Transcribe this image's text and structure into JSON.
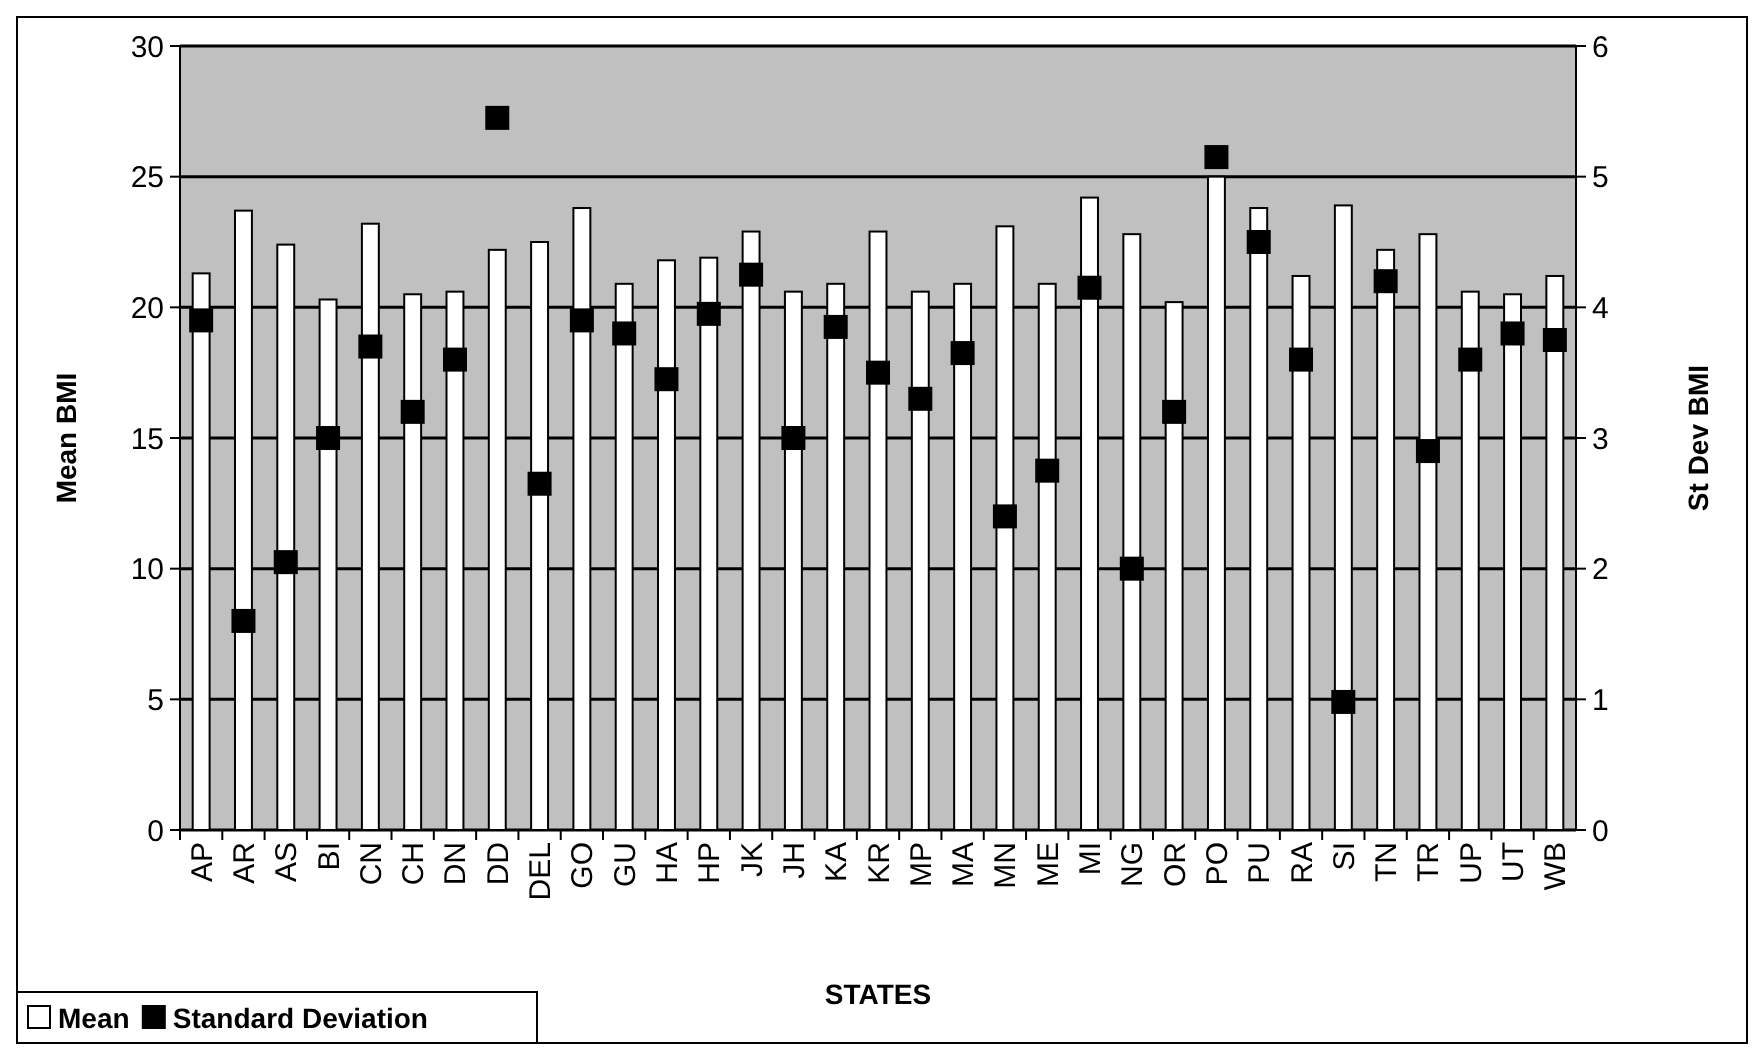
{
  "chart_data": {
    "type": "bar",
    "xlabel": "STATES",
    "ylabel": "Mean BMI",
    "y2label": "St Dev BMI",
    "categories": [
      "AP",
      "AR",
      "AS",
      "BI",
      "CN",
      "CH",
      "DN",
      "DD",
      "DEL",
      "GO",
      "GU",
      "HA",
      "HP",
      "JK",
      "JH",
      "KA",
      "KR",
      "MP",
      "MA",
      "MN",
      "ME",
      "MI",
      "NG",
      "OR",
      "PO",
      "PU",
      "RA",
      "SI",
      "TN",
      "TR",
      "UP",
      "UT",
      "WB"
    ],
    "series": [
      {
        "name": "Mean",
        "color": "#ffffff",
        "values": [
          21.3,
          23.7,
          22.4,
          20.3,
          23.2,
          20.5,
          20.6,
          22.2,
          22.5,
          23.8,
          20.9,
          21.8,
          21.9,
          22.9,
          20.6,
          20.9,
          22.9,
          20.6,
          20.9,
          23.1,
          20.9,
          24.2,
          22.8,
          20.2,
          25.0,
          23.8,
          21.2,
          23.9,
          22.2,
          22.8,
          20.6,
          20.5,
          21.2
        ]
      },
      {
        "name": "Standard Deviation",
        "type": "scatter",
        "axis": "y2",
        "marker": "square",
        "color": "#000000",
        "values": [
          3.9,
          1.6,
          2.05,
          3.0,
          3.7,
          3.2,
          3.6,
          5.45,
          2.65,
          3.9,
          3.8,
          3.45,
          3.95,
          4.25,
          3.0,
          3.85,
          3.5,
          3.3,
          3.65,
          2.4,
          2.75,
          4.15,
          2.0,
          3.2,
          5.15,
          4.5,
          3.6,
          0.98,
          4.2,
          2.9,
          3.6,
          3.8,
          3.75
        ]
      }
    ],
    "ylim": [
      0,
      30
    ],
    "yticks": [
      0,
      5,
      10,
      15,
      20,
      25,
      30
    ],
    "y2lim": [
      0,
      6
    ],
    "y2ticks": [
      0,
      1,
      2,
      3,
      4,
      5,
      6
    ],
    "grid": "y",
    "legend": "bottom left"
  }
}
